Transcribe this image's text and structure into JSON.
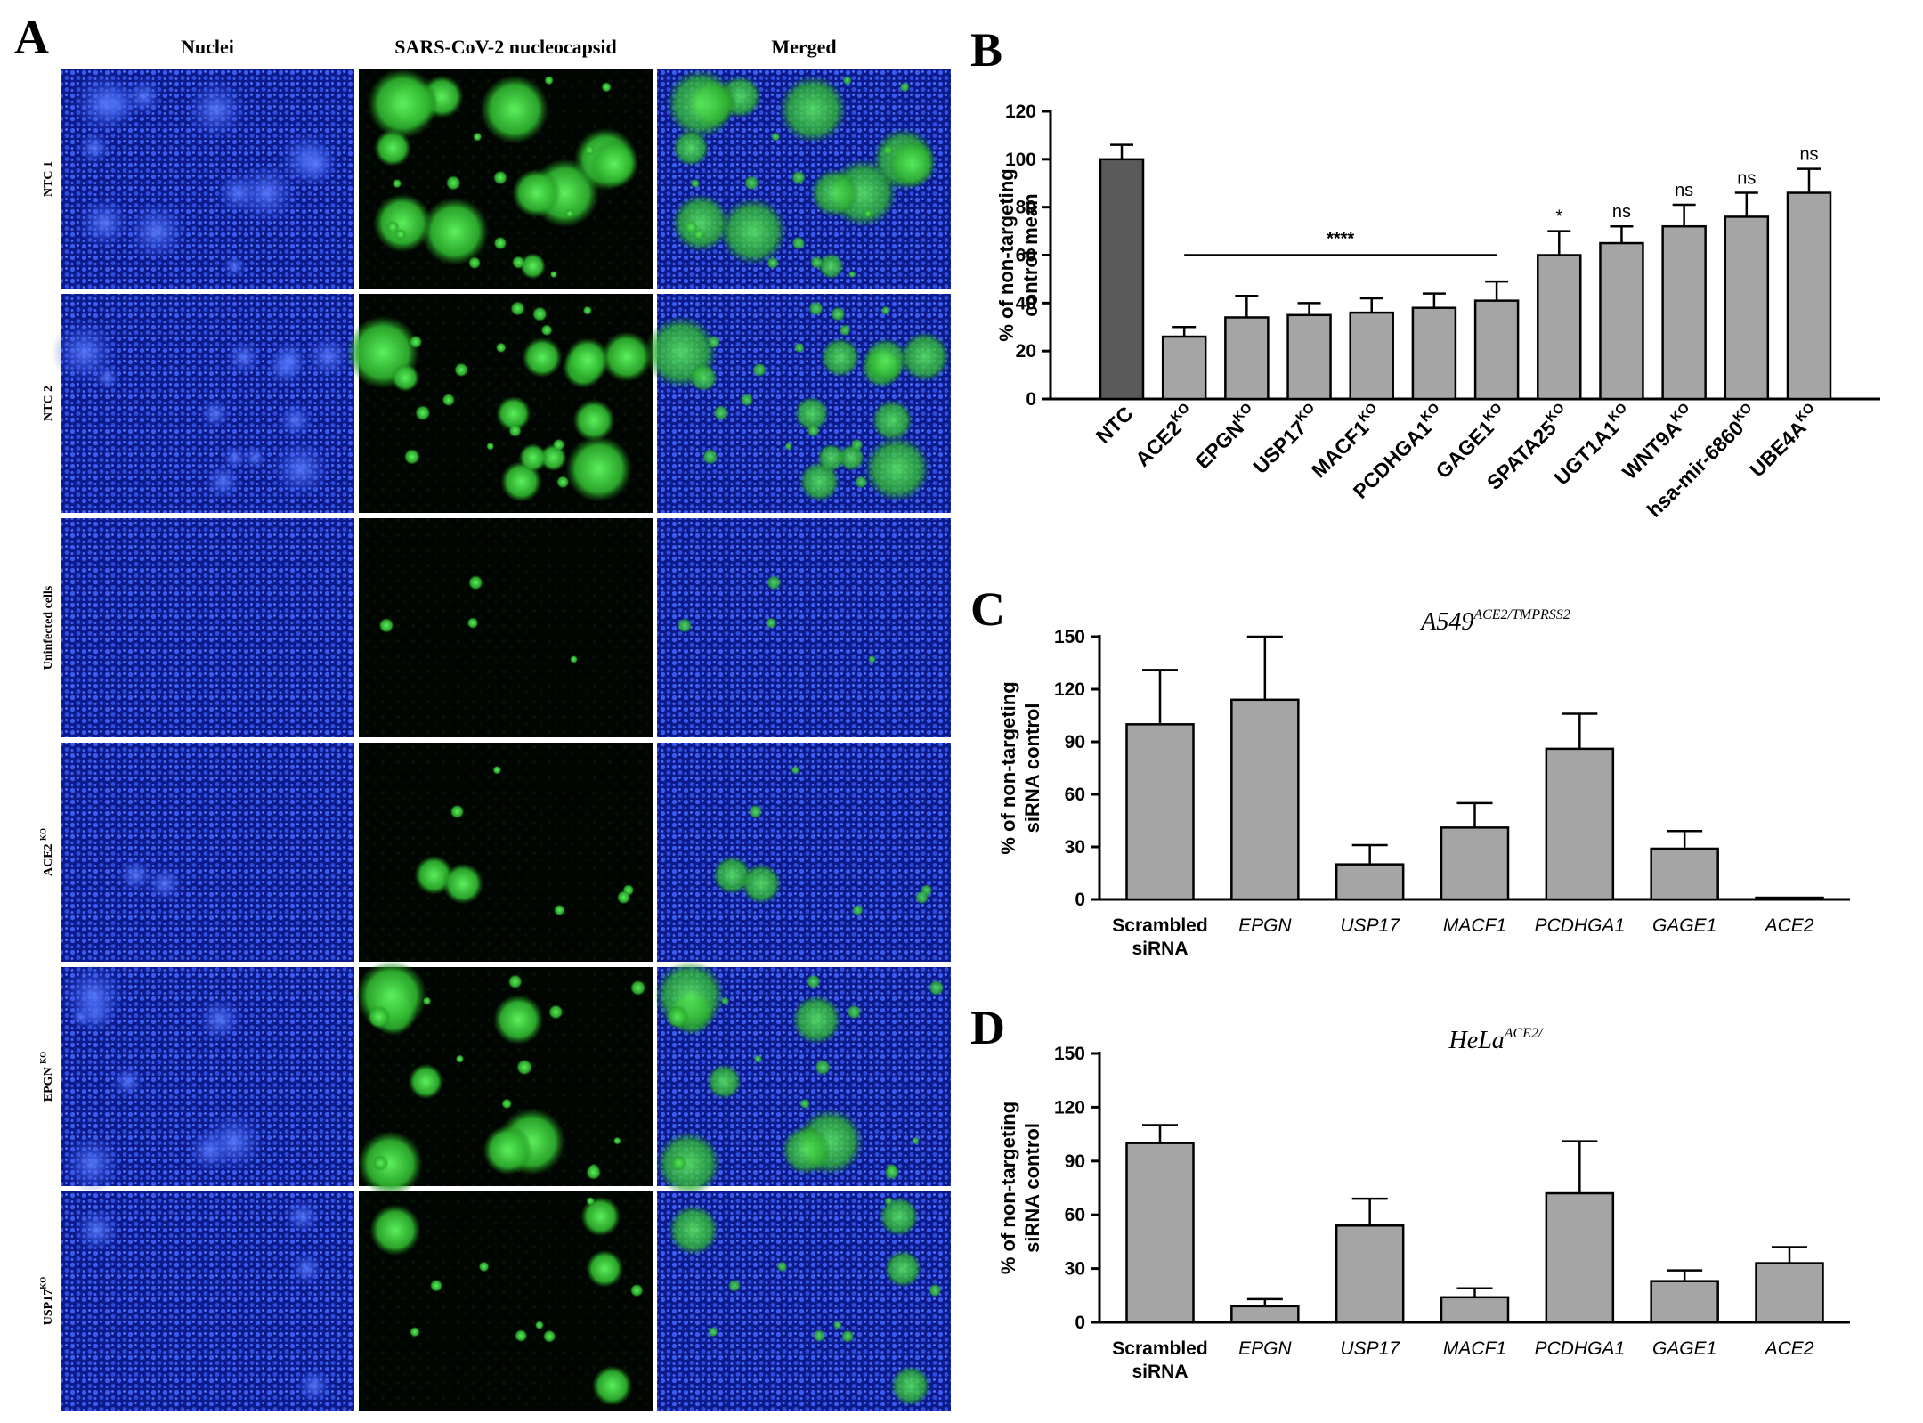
{
  "colors": {
    "nuclei_blue": "#1a33c8",
    "virus_green": "#3cd23c",
    "bar_dark": "#5a5a5a",
    "bar_grey": "#a5a5a5",
    "axis_black": "#000000"
  },
  "panel_a": {
    "label": "A",
    "column_headers": [
      "Nuclei",
      "SARS-CoV-2 nucleocapsid",
      "Merged"
    ],
    "row_labels": [
      {
        "name": "NTC 1",
        "sup": ""
      },
      {
        "name": "NTC 2",
        "sup": ""
      },
      {
        "name": "Uninfected cells",
        "sup": ""
      },
      {
        "name": "ACE2 ",
        "sup": "KO"
      },
      {
        "name": "EPGN ",
        "sup": "KO"
      },
      {
        "name": "USP17",
        "sup": "KO"
      }
    ],
    "infection_level": [
      0.85,
      0.85,
      0.0,
      0.12,
      0.55,
      0.3
    ]
  },
  "chart_data": [
    {
      "panel": "B",
      "type": "bar",
      "ylabel_lines": [
        "% of non-targeting",
        "control mean"
      ],
      "ylim": [
        0,
        120
      ],
      "yticks": [
        0,
        20,
        40,
        60,
        80,
        100,
        120
      ],
      "categories": [
        {
          "name": "NTC",
          "sup": ""
        },
        {
          "name": "ACE2",
          "sup": "KO"
        },
        {
          "name": "EPGN",
          "sup": "KO"
        },
        {
          "name": "USP17",
          "sup": "KO"
        },
        {
          "name": "MACF1",
          "sup": "KO"
        },
        {
          "name": "PCDHGA1",
          "sup": "KO"
        },
        {
          "name": "GAGE1",
          "sup": "KO"
        },
        {
          "name": "SPATA25",
          "sup": "KO"
        },
        {
          "name": "UGT1A1",
          "sup": "KO"
        },
        {
          "name": "WNT9A",
          "sup": "KO"
        },
        {
          "name": "hsa-mir-6860",
          "sup": "KO"
        },
        {
          "name": "UBE4A",
          "sup": "KO"
        }
      ],
      "values": [
        100,
        26,
        34,
        35,
        36,
        38,
        41,
        60,
        65,
        72,
        76,
        86
      ],
      "errors": [
        6,
        4,
        9,
        5,
        6,
        6,
        8,
        10,
        7,
        9,
        10,
        10
      ],
      "significance": [
        "",
        "",
        "",
        "",
        "",
        "",
        "",
        "*",
        "ns",
        "ns",
        "ns",
        "ns"
      ],
      "bracket": {
        "from_index": 1,
        "to_index": 6,
        "y": 60,
        "label": "****"
      }
    },
    {
      "panel": "C",
      "type": "bar",
      "title": "A549",
      "title_sup": "ACE2/TMPRSS2",
      "ylabel_lines": [
        "% of non-targeting",
        "siRNA control"
      ],
      "ylim": [
        0,
        150
      ],
      "yticks": [
        0,
        30,
        60,
        90,
        120,
        150
      ],
      "categories": [
        {
          "lines": [
            "Scrambled",
            "siRNA"
          ],
          "italic": false
        },
        {
          "lines": [
            "EPGN"
          ],
          "italic": true
        },
        {
          "lines": [
            "USP17"
          ],
          "italic": true
        },
        {
          "lines": [
            "MACF1"
          ],
          "italic": true
        },
        {
          "lines": [
            "PCDHGA1"
          ],
          "italic": true
        },
        {
          "lines": [
            "GAGE1"
          ],
          "italic": true
        },
        {
          "lines": [
            "ACE2"
          ],
          "italic": true
        }
      ],
      "values": [
        100,
        114,
        20,
        41,
        86,
        29,
        1
      ],
      "errors": [
        31,
        36,
        11,
        14,
        20,
        10,
        0
      ]
    },
    {
      "panel": "D",
      "type": "bar",
      "title": "HeLa",
      "title_sup": "ACE2/",
      "ylabel_lines": [
        "% of non-targeting",
        "siRNA control"
      ],
      "ylim": [
        0,
        150
      ],
      "yticks": [
        0,
        30,
        60,
        90,
        120,
        150
      ],
      "categories": [
        {
          "lines": [
            "Scrambled",
            "siRNA"
          ],
          "italic": false
        },
        {
          "lines": [
            "EPGN"
          ],
          "italic": true
        },
        {
          "lines": [
            "USP17"
          ],
          "italic": true
        },
        {
          "lines": [
            "MACF1"
          ],
          "italic": true
        },
        {
          "lines": [
            "PCDHGA1"
          ],
          "italic": true
        },
        {
          "lines": [
            "GAGE1"
          ],
          "italic": true
        },
        {
          "lines": [
            "ACE2"
          ],
          "italic": true
        }
      ],
      "values": [
        100,
        9,
        54,
        14,
        72,
        23,
        33
      ],
      "errors": [
        10,
        4,
        15,
        5,
        29,
        6,
        9
      ]
    }
  ]
}
